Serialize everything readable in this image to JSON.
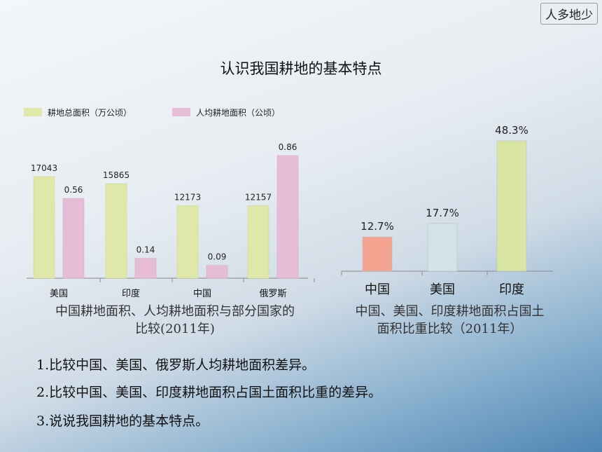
{
  "corner_tag": "人多地少",
  "title": "认识我国耕地的基本特点",
  "colors": {
    "green": "#dfe8a8",
    "pink": "#e6bcd7",
    "salmon": "#f4a490",
    "lightblue": "#d2e2e6",
    "lightgreen": "#d9e6a3"
  },
  "chart_data": [
    {
      "type": "bar",
      "categories": [
        "美国",
        "印度",
        "中国",
        "俄罗斯"
      ],
      "series": [
        {
          "name": "耕地总面积（万公顷）",
          "values": [
            17043,
            15865,
            12173,
            12157
          ],
          "labels": [
            "17043",
            "15865",
            "12173",
            "12157"
          ]
        },
        {
          "name": "人均耕地面积（公顷）",
          "values": [
            0.56,
            0.14,
            0.09,
            0.86
          ],
          "labels": [
            "0.56",
            "0.14",
            "0.09",
            "0.86"
          ]
        }
      ],
      "legend_position": "top-left",
      "caption": [
        "中国耕地面积、人均耕地面积与部分国家的",
        "比较(2011年)"
      ]
    },
    {
      "type": "bar",
      "categories": [
        "中国",
        "美国",
        "印度"
      ],
      "values": [
        12.7,
        17.7,
        48.3
      ],
      "labels": [
        "12.7%",
        "17.7%",
        "48.3%"
      ],
      "caption": [
        "中国、美国、印度耕地面积占国土",
        "面积比重比较（2011年）"
      ]
    }
  ],
  "questions": [
    "1.比较中国、美国、俄罗斯人均耕地面积差异。",
    "2.比较中国、美国、印度耕地面积占国土面积比重的差异。",
    "3.说说我国耕地的基本特点。"
  ]
}
